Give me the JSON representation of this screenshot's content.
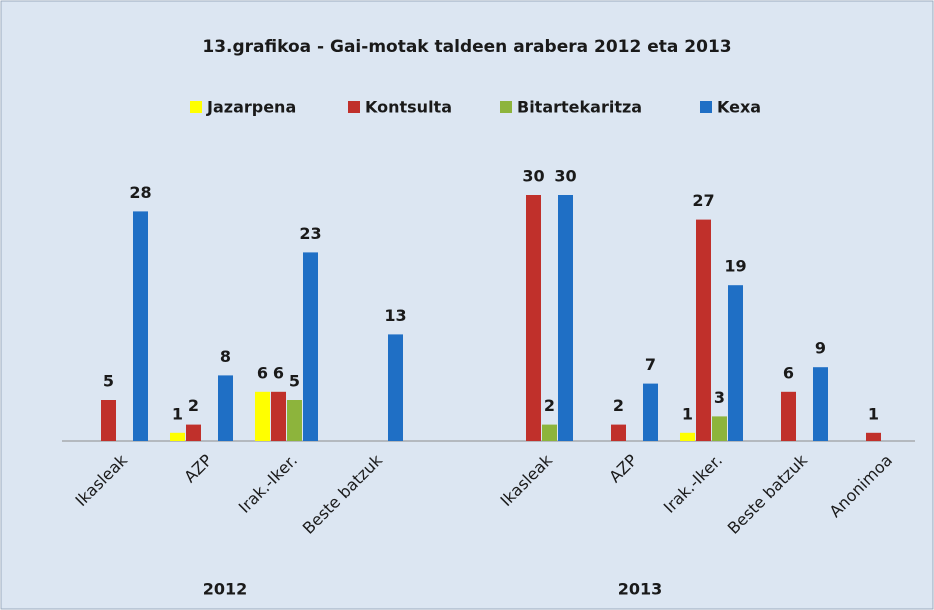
{
  "chart_data": {
    "type": "bar",
    "title": "13.grafikoa - Gai-motak taldeen arabera 2012 eta 2013",
    "groups": [
      {
        "label": "2012",
        "categories": [
          "Ikasleak",
          "AZP",
          "Irak.-Iker.",
          "Beste batzuk"
        ]
      },
      {
        "label": "2013",
        "categories": [
          "Ikasleak",
          "AZP",
          "Irak.-Iker.",
          "Beste batzuk",
          "Anonimoa"
        ]
      }
    ],
    "series": [
      {
        "name": "Jazarpena",
        "color": "#ffff00",
        "values": [
          null,
          1,
          6,
          null,
          null,
          null,
          1,
          null,
          null
        ]
      },
      {
        "name": "Kontsulta",
        "color": "#c0302b",
        "values": [
          5,
          2,
          6,
          null,
          30,
          2,
          27,
          6,
          1
        ]
      },
      {
        "name": "Bitartekaritza",
        "color": "#8db43c",
        "values": [
          null,
          null,
          5,
          null,
          2,
          null,
          3,
          null,
          null
        ]
      },
      {
        "name": "Kexa",
        "color": "#1f6fc5",
        "values": [
          28,
          8,
          23,
          13,
          30,
          7,
          19,
          9,
          null
        ]
      }
    ]
  }
}
